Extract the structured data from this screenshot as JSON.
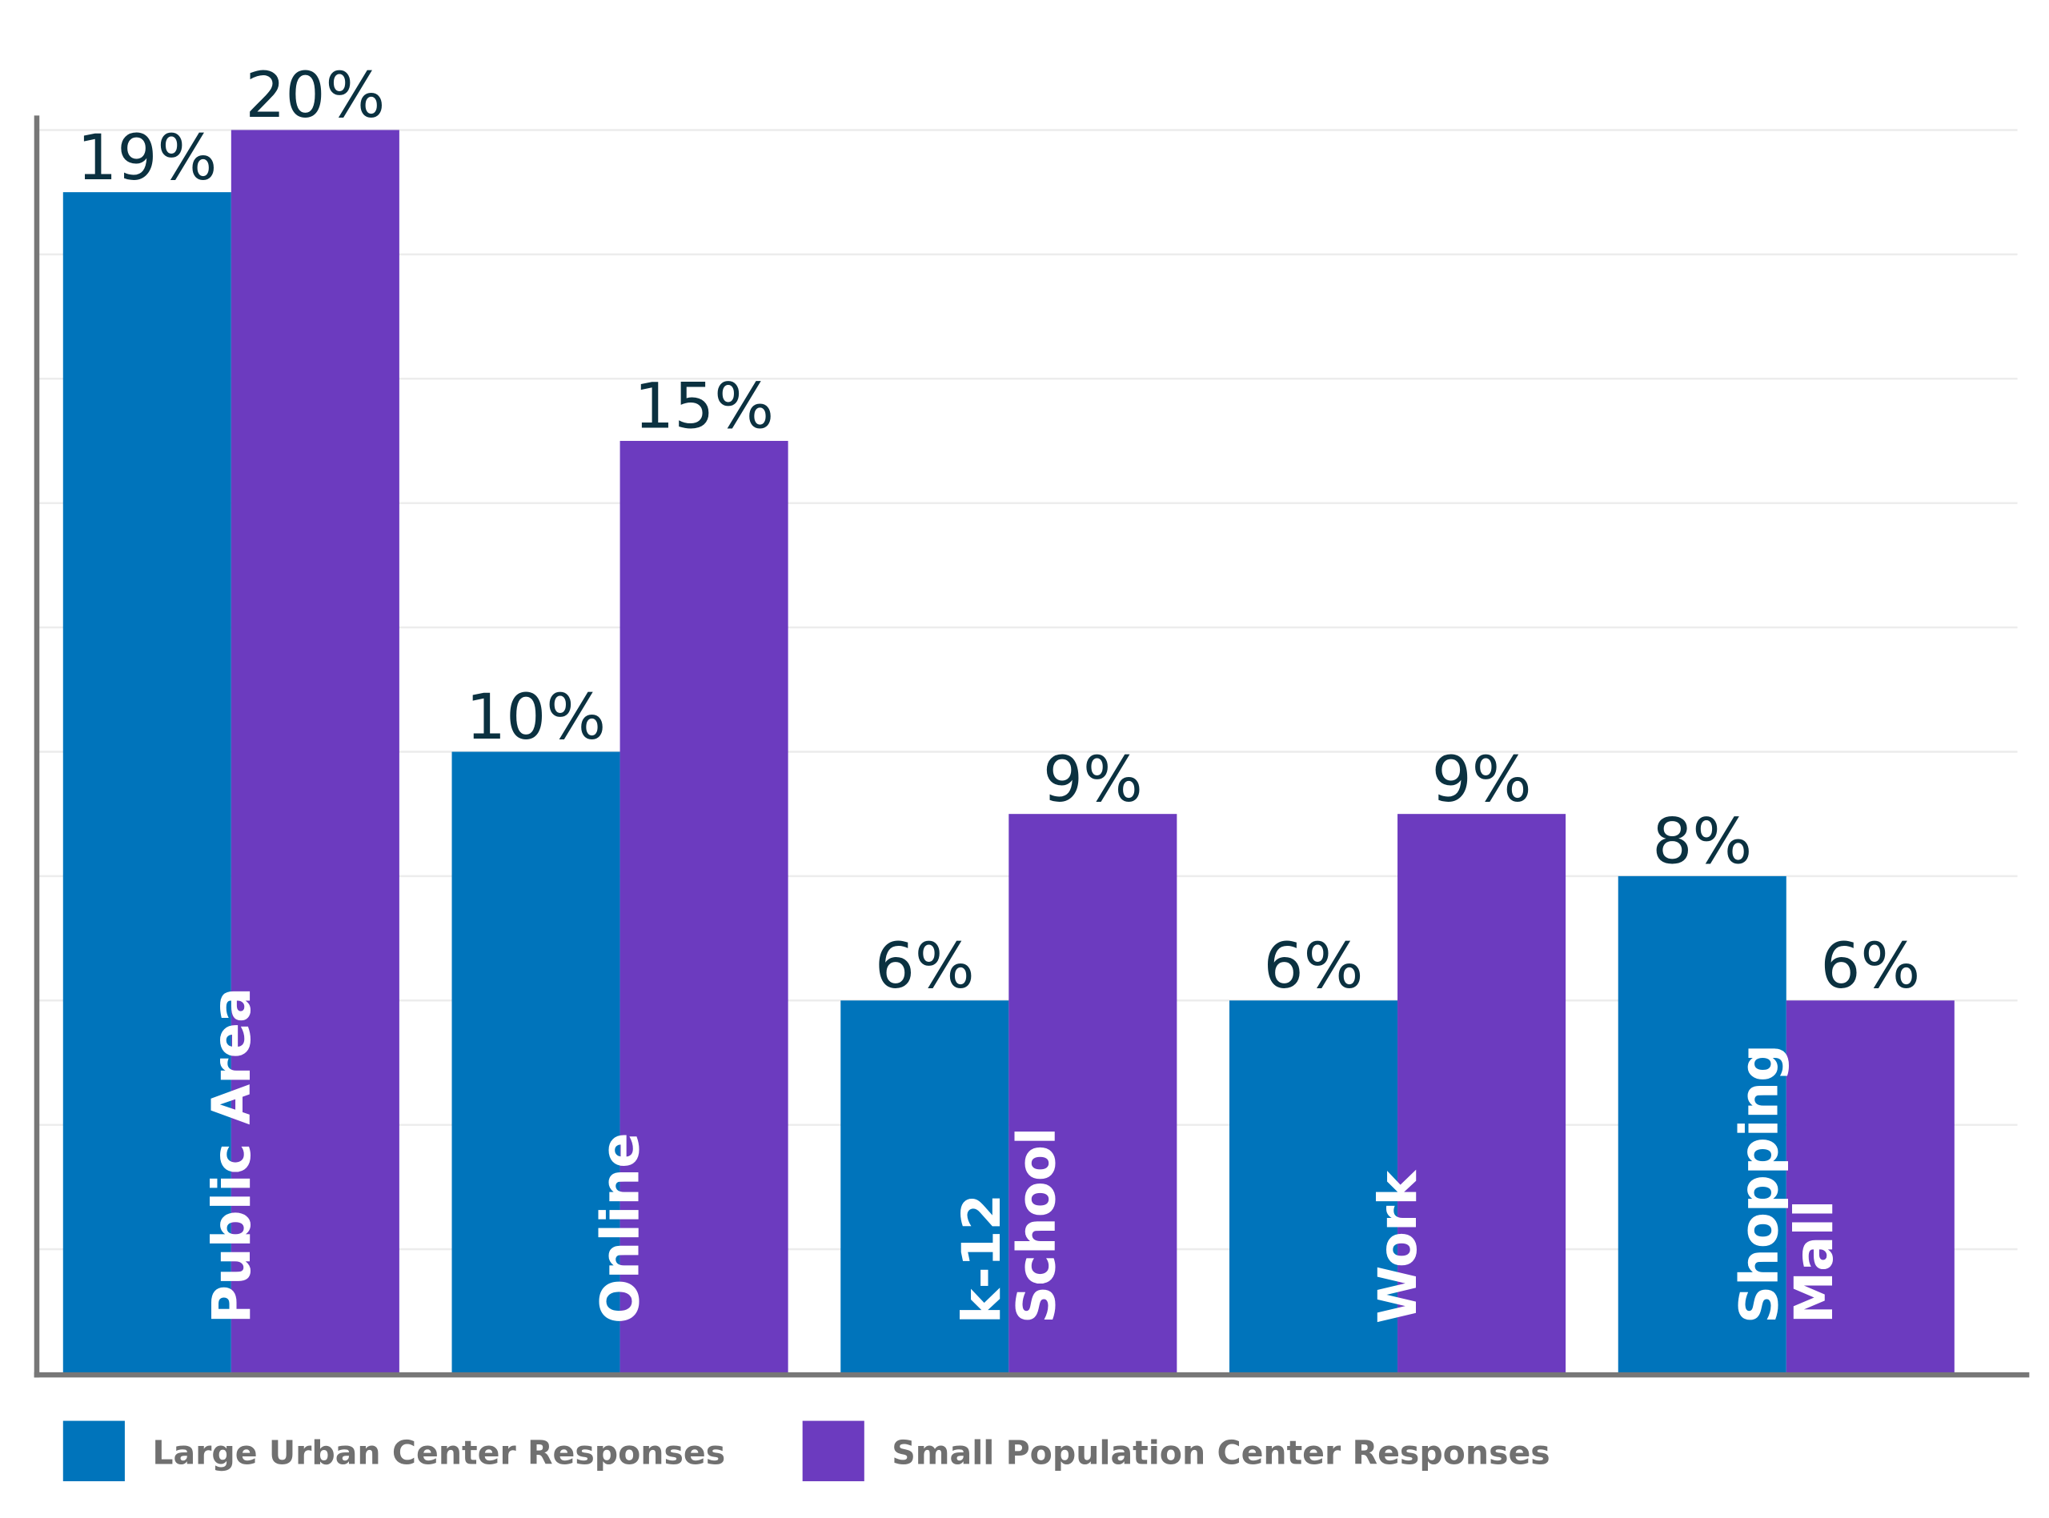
{
  "chart_data": {
    "type": "bar",
    "categories": [
      [
        "Public Area"
      ],
      [
        "Online"
      ],
      [
        "k-12",
        "School"
      ],
      [
        "Work"
      ],
      [
        "Shopping",
        "Mall"
      ]
    ],
    "series": [
      {
        "name": "Large Urban Center Responses",
        "values": [
          19,
          10,
          6,
          6,
          8
        ],
        "labels": [
          "19%",
          "10%",
          "6%",
          "6%",
          "8%"
        ],
        "color": "#0074BB"
      },
      {
        "name": "Small Population Center Responses",
        "values": [
          20,
          15,
          9,
          9,
          6
        ],
        "labels": [
          "20%",
          "15%",
          "9%",
          "9%",
          "6%"
        ],
        "color": "#6C3BBF"
      }
    ],
    "ylim": [
      0,
      20
    ],
    "grid": true,
    "grid_step": 2,
    "legend_position": "bottom-left",
    "axis_color": "#777777",
    "value_label_color": "#0B3140"
  }
}
